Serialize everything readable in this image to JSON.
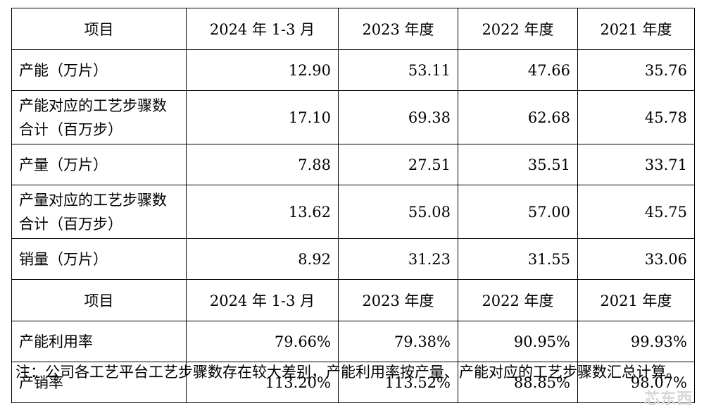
{
  "header": {
    "col0": "项目",
    "col1": "2024 年 1-3 月",
    "col2": "2023 年度",
    "col3": "2022 年度",
    "col4": "2021 年度"
  },
  "rows": [
    {
      "label": "产能（万片）",
      "v1": "12.90",
      "v2": "53.11",
      "v3": "47.66",
      "v4": "35.76"
    },
    {
      "label": "产能对应的工艺步骤数合计（百万步）",
      "v1": "17.10",
      "v2": "69.38",
      "v3": "62.68",
      "v4": "45.78"
    },
    {
      "label": "产量（万片）",
      "v1": "7.88",
      "v2": "27.51",
      "v3": "35.51",
      "v4": "33.71"
    },
    {
      "label": "产量对应的工艺步骤数合计（百万步）",
      "v1": "13.62",
      "v2": "55.08",
      "v3": "57.00",
      "v4": "45.75"
    },
    {
      "label": "销量（万片）",
      "v1": "8.92",
      "v2": "31.23",
      "v3": "31.55",
      "v4": "33.06"
    }
  ],
  "header2": {
    "col0": "项目",
    "col1": "2024 年 1-3 月",
    "col2": "2023 年度",
    "col3": "2022 年度",
    "col4": "2021 年度"
  },
  "rows2": [
    {
      "label": "产能利用率",
      "v1": "79.66%",
      "v2": "79.38%",
      "v3": "90.95%",
      "v4": "99.93%"
    },
    {
      "label": "产销率",
      "v1": "113.20%",
      "v2": "113.52%",
      "v3": "88.85%",
      "v4": "98.07%"
    }
  ],
  "note": "注：公司各工艺平台工艺步骤数存在较大差别，产能利用率按产量、产能对应的工艺步骤数汇总计算。",
  "watermark": "芯东西"
}
